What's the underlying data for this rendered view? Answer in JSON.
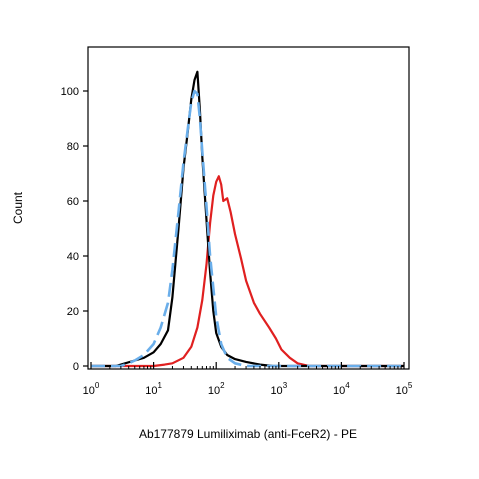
{
  "chart_data": {
    "type": "line",
    "title": "",
    "xlabel": "Ab177879 Lumiliximab (anti-FceR2) - PE",
    "ylabel": "Count",
    "x_scale": "log",
    "xlim": [
      1,
      100000
    ],
    "ylim": [
      0,
      115
    ],
    "x_ticks": [
      {
        "value": 1,
        "base": "10",
        "exp": "0"
      },
      {
        "value": 10,
        "base": "10",
        "exp": "1"
      },
      {
        "value": 100,
        "base": "10",
        "exp": "2"
      },
      {
        "value": 1000,
        "base": "10",
        "exp": "3"
      },
      {
        "value": 10000,
        "base": "10",
        "exp": "4"
      },
      {
        "value": 100000,
        "base": "10",
        "exp": "5"
      }
    ],
    "y_ticks": [
      0,
      20,
      40,
      60,
      80,
      100
    ],
    "grid": false,
    "series": [
      {
        "color": "#e02020",
        "dash": false,
        "x": [
          1,
          6,
          10,
          15,
          20,
          30,
          40,
          50,
          60,
          70,
          80,
          90,
          100,
          110,
          120,
          130,
          150,
          170,
          200,
          250,
          300,
          400,
          500,
          700,
          900,
          1100,
          1500,
          2000,
          3000,
          100000
        ],
        "y": [
          0,
          0,
          0,
          0.5,
          1,
          3,
          7,
          14,
          24,
          37,
          52,
          62,
          67,
          69,
          66,
          60,
          61,
          56,
          48,
          39,
          31,
          23,
          19,
          14,
          10,
          6,
          3,
          1,
          0,
          0
        ]
      },
      {
        "color": "#000000",
        "dash": false,
        "x": [
          1,
          2.5,
          3.5,
          5,
          7,
          10,
          13,
          17,
          20,
          25,
          30,
          35,
          40,
          45,
          50,
          55,
          60,
          70,
          80,
          90,
          100,
          120,
          150,
          200,
          300,
          500,
          800,
          100000
        ],
        "y": [
          0,
          0,
          1,
          2,
          3,
          5,
          8,
          13,
          25,
          50,
          72,
          85,
          97,
          104,
          107,
          93,
          76,
          53,
          34,
          20,
          12,
          7,
          4,
          2.5,
          1.5,
          0.5,
          0,
          0
        ]
      },
      {
        "color": "#6aaeea",
        "dash": true,
        "x": [
          1,
          3,
          4,
          5,
          7,
          10,
          13,
          17,
          20,
          25,
          30,
          35,
          40,
          45,
          50,
          55,
          60,
          70,
          80,
          100,
          120,
          150,
          200,
          300,
          100000
        ],
        "y": [
          0,
          0,
          1,
          2,
          4,
          8,
          14,
          23,
          35,
          56,
          74,
          86,
          96,
          100,
          99,
          90,
          78,
          58,
          40,
          18,
          8,
          3,
          1,
          0,
          0
        ]
      }
    ]
  }
}
